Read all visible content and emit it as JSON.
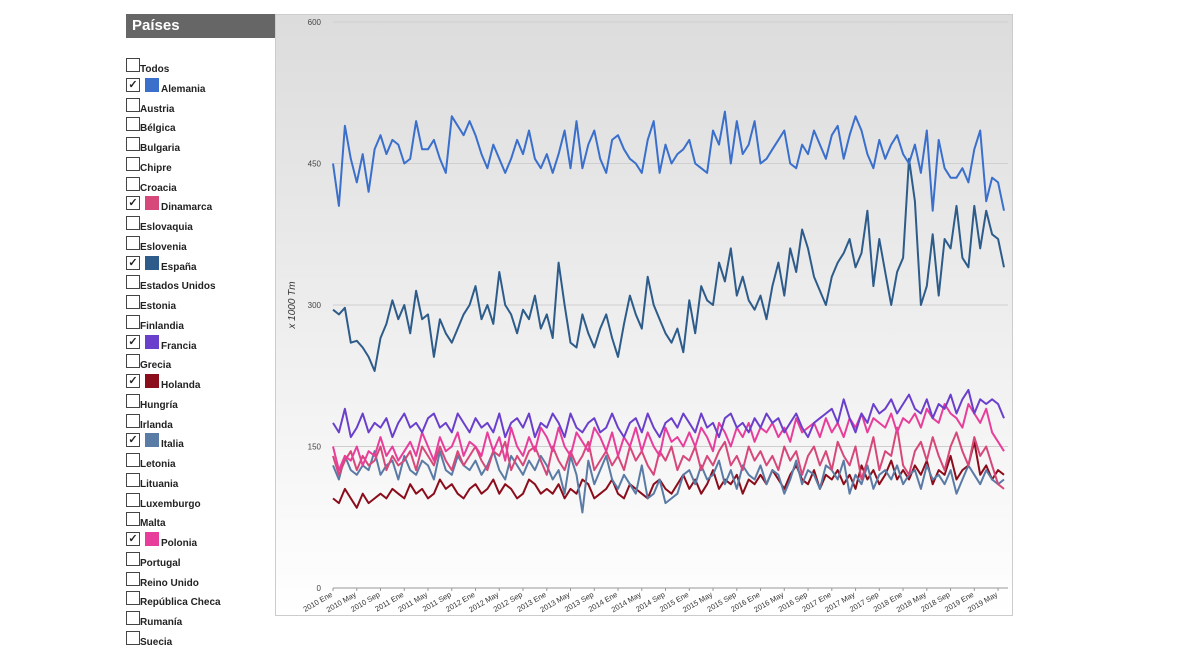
{
  "sidebar": {
    "title": "Países",
    "items": [
      {
        "label": "Todos",
        "checked": false
      },
      {
        "label": "Alemania",
        "checked": true
      },
      {
        "label": "Austria",
        "checked": false
      },
      {
        "label": "Bélgica",
        "checked": false
      },
      {
        "label": "Bulgaria",
        "checked": false
      },
      {
        "label": "Chipre",
        "checked": false
      },
      {
        "label": "Croacia",
        "checked": false
      },
      {
        "label": "Dinamarca",
        "checked": true
      },
      {
        "label": "Eslovaquia",
        "checked": false
      },
      {
        "label": "Eslovenia",
        "checked": false
      },
      {
        "label": "España",
        "checked": true
      },
      {
        "label": "Estados Unidos",
        "checked": false
      },
      {
        "label": "Estonia",
        "checked": false
      },
      {
        "label": "Finlandia",
        "checked": false
      },
      {
        "label": "Francia",
        "checked": true
      },
      {
        "label": "Grecia",
        "checked": false
      },
      {
        "label": "Holanda",
        "checked": true
      },
      {
        "label": "Hungría",
        "checked": false
      },
      {
        "label": "Irlanda",
        "checked": false
      },
      {
        "label": "Italia",
        "checked": true
      },
      {
        "label": "Letonia",
        "checked": false
      },
      {
        "label": "Lituania",
        "checked": false
      },
      {
        "label": "Luxemburgo",
        "checked": false
      },
      {
        "label": "Malta",
        "checked": false
      },
      {
        "label": "Polonia",
        "checked": true
      },
      {
        "label": "Portugal",
        "checked": false
      },
      {
        "label": "Reino Unido",
        "checked": false
      },
      {
        "label": "República Checa",
        "checked": false
      },
      {
        "label": "Rumanía",
        "checked": false
      },
      {
        "label": "Suecia",
        "checked": false
      }
    ]
  },
  "chart_data": {
    "type": "line",
    "y_label": "x 1000 Tm",
    "ylim": [
      0,
      600
    ],
    "yticks": [
      0,
      150,
      300,
      450,
      600
    ],
    "grid": true,
    "categories": [
      "2010 Ene",
      null,
      null,
      null,
      "2010 May",
      null,
      null,
      null,
      "2010 Sep",
      null,
      null,
      null,
      "2011 Ene",
      null,
      null,
      null,
      "2011 May",
      null,
      null,
      null,
      "2011 Sep",
      null,
      null,
      null,
      "2012 Ene",
      null,
      null,
      null,
      "2012 May",
      null,
      null,
      null,
      "2012 Sep",
      null,
      null,
      null,
      "2013 Ene",
      null,
      null,
      null,
      "2013 May",
      null,
      null,
      null,
      "2013 Sep",
      null,
      null,
      null,
      "2014 Ene",
      null,
      null,
      null,
      "2014 May",
      null,
      null,
      null,
      "2014 Sep",
      null,
      null,
      null,
      "2015 Ene",
      null,
      null,
      null,
      "2015 May",
      null,
      null,
      null,
      "2015 Sep",
      null,
      null,
      null,
      "2016 Ene",
      null,
      null,
      null,
      "2016 May",
      null,
      null,
      null,
      "2016 Sep",
      null,
      null,
      null,
      "2017 Ene",
      null,
      null,
      null,
      "2017 May",
      null,
      null,
      null,
      "2017 Sep",
      null,
      null,
      null,
      "2018 Ene",
      null,
      null,
      null,
      "2018 May",
      null,
      null,
      null,
      "2018 Sep",
      null,
      null,
      null,
      "2019 Ene",
      null,
      null,
      null,
      "2019 May",
      null
    ],
    "series": [
      {
        "name": "Alemania",
        "color": "#3a6fcc",
        "values": [
          450,
          405,
          490,
          455,
          430,
          460,
          420,
          465,
          480,
          460,
          475,
          470,
          450,
          455,
          495,
          465,
          465,
          475,
          455,
          440,
          500,
          490,
          480,
          495,
          480,
          460,
          445,
          470,
          455,
          440,
          455,
          475,
          460,
          485,
          455,
          445,
          460,
          440,
          460,
          485,
          445,
          495,
          445,
          470,
          485,
          455,
          440,
          475,
          480,
          465,
          455,
          450,
          440,
          475,
          495,
          440,
          470,
          450,
          460,
          465,
          475,
          450,
          445,
          440,
          485,
          470,
          505,
          450,
          495,
          460,
          470,
          495,
          450,
          455,
          465,
          475,
          485,
          450,
          445,
          470,
          460,
          485,
          470,
          455,
          480,
          490,
          455,
          480,
          500,
          485,
          460,
          445,
          475,
          455,
          470,
          480,
          460,
          450,
          470,
          440,
          485,
          400,
          475,
          445,
          435,
          435,
          445,
          430,
          465,
          485,
          410,
          435,
          430,
          400
        ]
      },
      {
        "name": "España",
        "color": "#2e5c8a",
        "values": [
          295,
          290,
          297,
          260,
          262,
          255,
          245,
          230,
          265,
          280,
          305,
          285,
          300,
          270,
          315,
          285,
          290,
          245,
          285,
          270,
          260,
          275,
          290,
          300,
          320,
          285,
          300,
          280,
          335,
          300,
          290,
          270,
          295,
          285,
          310,
          275,
          290,
          265,
          345,
          300,
          260,
          255,
          290,
          270,
          255,
          275,
          290,
          265,
          245,
          280,
          310,
          290,
          275,
          330,
          300,
          285,
          270,
          260,
          275,
          250,
          305,
          270,
          320,
          305,
          300,
          345,
          325,
          360,
          310,
          330,
          305,
          295,
          310,
          285,
          320,
          345,
          310,
          360,
          335,
          380,
          360,
          330,
          315,
          300,
          330,
          345,
          355,
          370,
          340,
          355,
          400,
          320,
          370,
          335,
          300,
          335,
          350,
          455,
          410,
          300,
          320,
          375,
          310,
          370,
          360,
          405,
          350,
          340,
          405,
          360,
          400,
          375,
          370,
          340
        ]
      },
      {
        "name": "Francia",
        "color": "#6a3fcc",
        "values": [
          175,
          165,
          190,
          160,
          170,
          185,
          165,
          175,
          170,
          180,
          160,
          175,
          185,
          170,
          175,
          165,
          180,
          185,
          170,
          175,
          165,
          185,
          175,
          165,
          180,
          170,
          175,
          165,
          185,
          160,
          175,
          180,
          170,
          185,
          160,
          175,
          170,
          185,
          175,
          160,
          185,
          170,
          165,
          175,
          180,
          165,
          170,
          185,
          170,
          160,
          175,
          180,
          165,
          185,
          170,
          160,
          175,
          180,
          170,
          185,
          175,
          165,
          185,
          170,
          175,
          160,
          180,
          185,
          170,
          175,
          165,
          180,
          170,
          185,
          175,
          180,
          165,
          175,
          185,
          170,
          160,
          175,
          180,
          185,
          190,
          175,
          200,
          180,
          165,
          185,
          175,
          195,
          185,
          190,
          200,
          185,
          195,
          205,
          190,
          185,
          200,
          180,
          195,
          190,
          205,
          185,
          200,
          210,
          185,
          200,
          195,
          200,
          195,
          180
        ]
      },
      {
        "name": "Polonia",
        "color": "#e83e9b",
        "values": [
          150,
          125,
          140,
          135,
          150,
          130,
          145,
          140,
          160,
          140,
          150,
          135,
          145,
          155,
          140,
          165,
          150,
          135,
          160,
          145,
          150,
          165,
          140,
          155,
          150,
          140,
          165,
          145,
          160,
          135,
          170,
          150,
          140,
          160,
          145,
          170,
          160,
          145,
          170,
          150,
          140,
          165,
          155,
          145,
          170,
          160,
          145,
          165,
          140,
          160,
          150,
          170,
          145,
          165,
          150,
          140,
          170,
          155,
          160,
          150,
          165,
          150,
          170,
          160,
          145,
          175,
          165,
          150,
          170,
          160,
          175,
          155,
          170,
          165,
          175,
          160,
          170,
          155,
          180,
          165,
          170,
          175,
          160,
          180,
          165,
          175,
          160,
          180,
          170,
          185,
          165,
          180,
          175,
          170,
          185,
          165,
          180,
          175,
          185,
          170,
          190,
          180,
          175,
          195,
          185,
          180,
          170,
          195,
          185,
          175,
          190,
          165,
          155,
          145
        ]
      },
      {
        "name": "Dinamarca",
        "color": "#d6487a",
        "values": [
          140,
          120,
          135,
          145,
          125,
          140,
          130,
          135,
          150,
          125,
          140,
          130,
          135,
          145,
          125,
          150,
          140,
          130,
          150,
          135,
          125,
          145,
          130,
          140,
          150,
          135,
          125,
          145,
          140,
          155,
          125,
          140,
          130,
          145,
          150,
          135,
          120,
          150,
          135,
          125,
          145,
          130,
          140,
          155,
          125,
          135,
          145,
          130,
          140,
          125,
          150,
          135,
          145,
          130,
          120,
          145,
          135,
          150,
          125,
          140,
          135,
          150,
          125,
          140,
          130,
          145,
          155,
          130,
          140,
          125,
          150,
          135,
          145,
          130,
          140,
          125,
          150,
          135,
          145,
          120,
          140,
          150,
          130,
          145,
          125,
          155,
          140,
          130,
          150,
          115,
          135,
          160,
          125,
          145,
          140,
          170,
          130,
          120,
          145,
          155,
          135,
          160,
          140,
          125,
          150,
          165,
          145,
          130,
          160,
          140,
          150,
          130,
          110,
          105
        ]
      },
      {
        "name": "Italia",
        "color": "#5a7ba5",
        "values": [
          130,
          115,
          140,
          125,
          120,
          130,
          125,
          145,
          120,
          130,
          135,
          115,
          140,
          125,
          120,
          135,
          130,
          115,
          145,
          125,
          120,
          140,
          130,
          125,
          135,
          120,
          130,
          145,
          125,
          115,
          140,
          130,
          120,
          135,
          125,
          140,
          130,
          115,
          125,
          100,
          140,
          120,
          80,
          135,
          110,
          125,
          140,
          115,
          105,
          120,
          110,
          100,
          130,
          95,
          100,
          115,
          90,
          95,
          100,
          120,
          125,
          110,
          130,
          115,
          120,
          135,
          110,
          125,
          105,
          130,
          120,
          115,
          130,
          110,
          125,
          120,
          100,
          115,
          135,
          110,
          125,
          120,
          105,
          130,
          125,
          115,
          135,
          100,
          120,
          110,
          130,
          105,
          120,
          125,
          115,
          130,
          110,
          120,
          125,
          105,
          130,
          115,
          120,
          110,
          125,
          100,
          115,
          130,
          120,
          110,
          125,
          115,
          110,
          115
        ]
      },
      {
        "name": "Holanda",
        "color": "#8b0d1b",
        "values": [
          95,
          90,
          105,
          95,
          85,
          100,
          90,
          95,
          100,
          95,
          105,
          100,
          95,
          110,
          100,
          105,
          95,
          100,
          115,
          105,
          110,
          100,
          95,
          105,
          110,
          100,
          105,
          115,
          100,
          110,
          105,
          95,
          100,
          115,
          110,
          100,
          105,
          100,
          110,
          95,
          105,
          100,
          115,
          110,
          95,
          100,
          105,
          115,
          100,
          95,
          110,
          105,
          100,
          95,
          110,
          115,
          105,
          100,
          110,
          120,
          105,
          115,
          100,
          110,
          125,
          105,
          115,
          110,
          120,
          100,
          115,
          110,
          120,
          110,
          125,
          115,
          105,
          120,
          130,
          115,
          110,
          125,
          105,
          120,
          115,
          125,
          110,
          120,
          105,
          130,
          115,
          125,
          110,
          120,
          135,
          115,
          125,
          115,
          130,
          120,
          135,
          110,
          125,
          120,
          140,
          115,
          125,
          130,
          155,
          120,
          130,
          115,
          125,
          120
        ]
      }
    ]
  }
}
